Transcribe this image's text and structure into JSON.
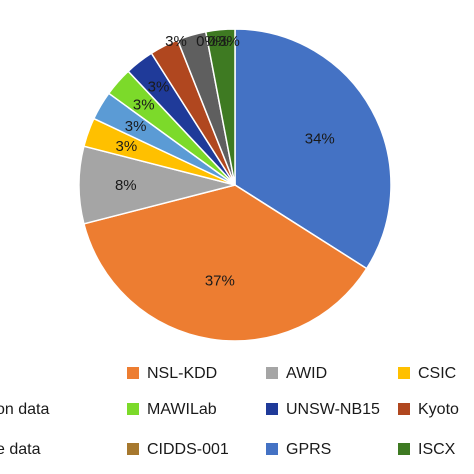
{
  "chart_data": {
    "type": "pie",
    "slices": [
      {
        "label": "",
        "value": 34,
        "value_label": "34%",
        "color": "#4472C4"
      },
      {
        "label": "NSL-KDD",
        "value": 37,
        "value_label": "37%",
        "color": "#ED7D31"
      },
      {
        "label": "AWID",
        "value": 8,
        "value_label": "8%",
        "color": "#A5A5A5"
      },
      {
        "label": "CSIC",
        "value": 3,
        "value_label": "3%",
        "color": "#FFC000"
      },
      {
        "label": "",
        "value": 3,
        "value_label": "3%",
        "color": "#5B9BD5"
      },
      {
        "label": "MAWILab",
        "value": 3,
        "value_label": "3%",
        "color": "#7CDA2A"
      },
      {
        "label": "UNSW-NB15",
        "value": 3,
        "value_label": "3%",
        "color": "#1F3A99"
      },
      {
        "label": "Kyoto",
        "value": 3,
        "value_label": "3%",
        "color": "#B0471F"
      },
      {
        "label": "",
        "value": 3,
        "value_label": "3%",
        "color": "#5F5F5F"
      },
      {
        "label": "",
        "value": 3,
        "value_label": "3%",
        "color": "#3E7A22"
      }
    ],
    "top_labels": [
      "3%",
      "0%",
      "0%",
      "3%"
    ],
    "legend": [
      {
        "label": "NSL-KDD",
        "color": "#ED7D31"
      },
      {
        "label": "AWID",
        "color": "#A5A5A5"
      },
      {
        "label": "CSIC",
        "color": "#FFC000"
      },
      {
        "label": "on data",
        "color": null
      },
      {
        "label": "MAWILab",
        "color": "#7CDA2A"
      },
      {
        "label": "UNSW-NB15",
        "color": "#1F3A99"
      },
      {
        "label": "Kyoto",
        "color": "#B0471F"
      },
      {
        "label": "e data",
        "color": null
      },
      {
        "label": "CIDDS-001",
        "color": "#A6782E"
      },
      {
        "label": "GPRS",
        "color": "#4472C4"
      },
      {
        "label": "ISCX",
        "color": "#3E7A22"
      }
    ],
    "title": "",
    "legend_position": "bottom"
  }
}
